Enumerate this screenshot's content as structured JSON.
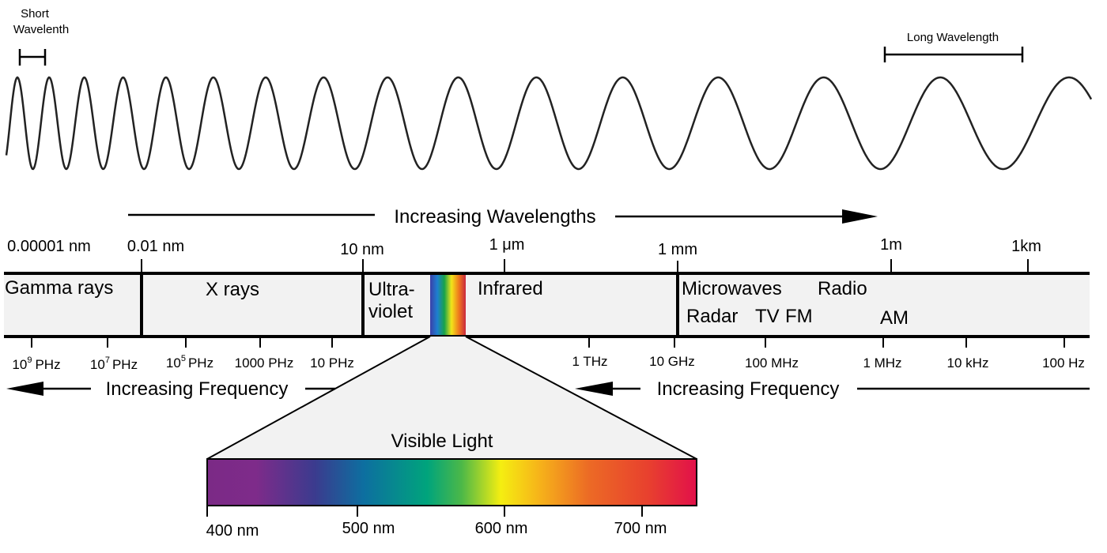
{
  "wave": {
    "short_label": [
      "Short",
      "Wavelenth"
    ],
    "long_label": "Long Wavelength"
  },
  "wavelength_axis": {
    "title": "Increasing Wavelengths",
    "ticks": [
      "0.00001 nm",
      "0.01 nm",
      "10 nm",
      "1 μm",
      "1 mm",
      "1m",
      "1km"
    ]
  },
  "regions": {
    "gamma": "Gamma rays",
    "xray": "X rays",
    "uv": [
      "Ultra-",
      "violet"
    ],
    "infrared": "Infrared",
    "microwaves": "Microwaves",
    "radio": "Radio",
    "radar": "Radar",
    "tv": "TV",
    "fm": "FM",
    "am": "AM"
  },
  "frequency_axis": {
    "title": "Increasing Frequency",
    "ticks": [
      {
        "base": "10",
        "exp": "9",
        "unit": "PHz"
      },
      {
        "base": "10",
        "exp": "7",
        "unit": "PHz"
      },
      {
        "base": "10",
        "exp": "5",
        "unit": "PHz"
      },
      "1000 PHz",
      "10 PHz",
      "1 THz",
      "10 GHz",
      "100 MHz",
      "1 MHz",
      "10 kHz",
      "100 Hz"
    ]
  },
  "visible_light": {
    "title": "Visible Light",
    "ticks": [
      "400 nm",
      "500 nm",
      "600 nm",
      "700 nm"
    ]
  }
}
